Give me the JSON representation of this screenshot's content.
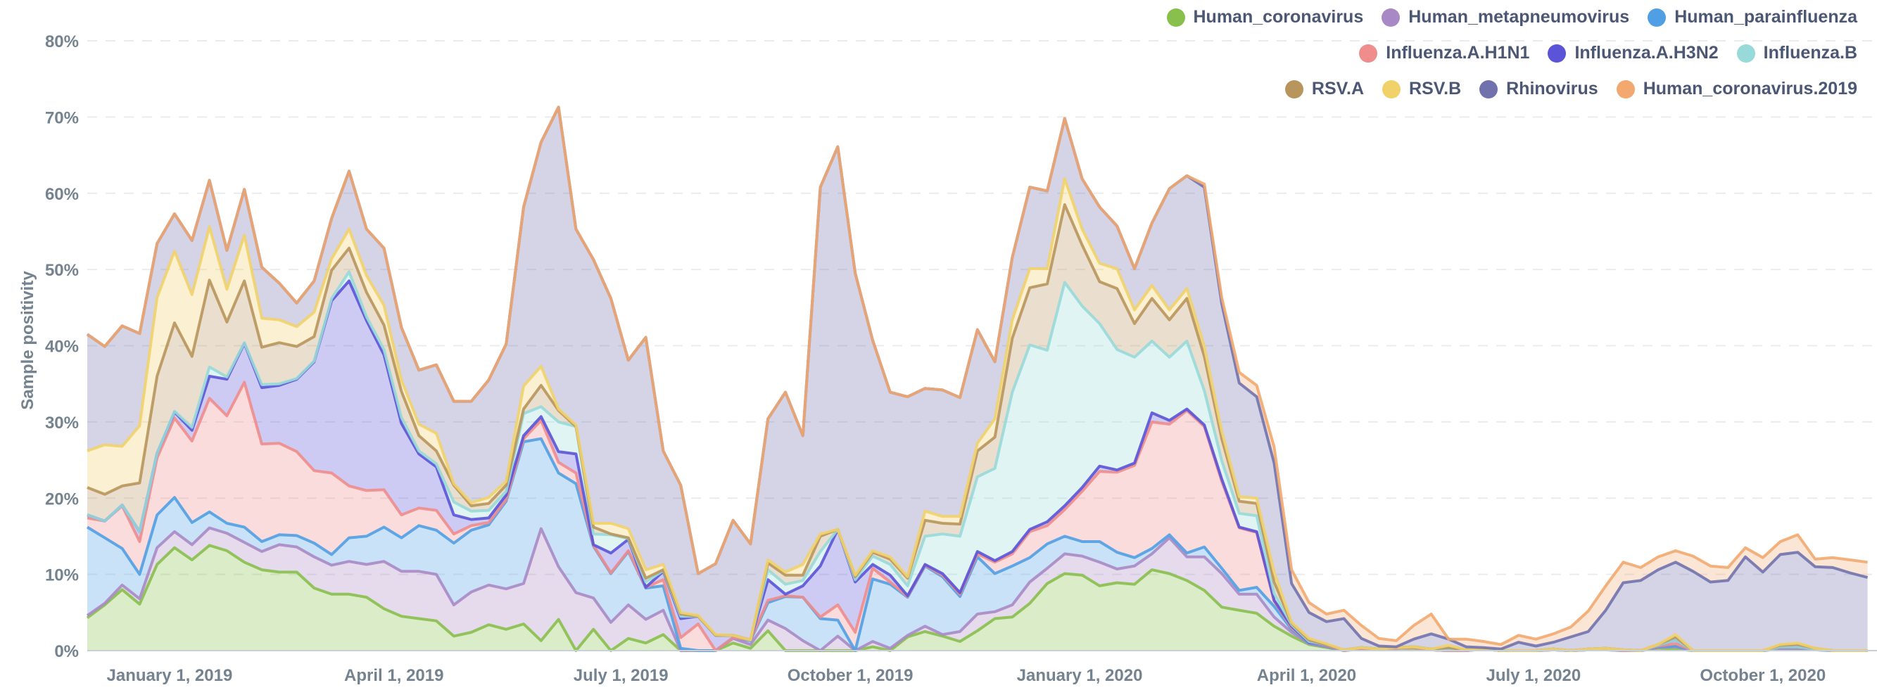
{
  "chart_data": {
    "type": "area",
    "stacked": true,
    "title": "",
    "xlabel": "",
    "ylabel": "Sample positivity",
    "ylim": [
      0,
      80
    ],
    "y_unit": "%",
    "grid": true,
    "legend_position": "top-right",
    "x_start_date": "2018-11-29",
    "x_interval_days": 7,
    "x_ticks": [
      {
        "label": "January 1, 2019",
        "date": "2019-01-01"
      },
      {
        "label": "April 1, 2019",
        "date": "2019-04-01"
      },
      {
        "label": "July 1, 2019",
        "date": "2019-07-01"
      },
      {
        "label": "October 1, 2019",
        "date": "2019-10-01"
      },
      {
        "label": "January 1, 2020",
        "date": "2020-01-01"
      },
      {
        "label": "April 1, 2020",
        "date": "2020-04-01"
      },
      {
        "label": "July 1, 2020",
        "date": "2020-07-01"
      },
      {
        "label": "October 1, 2020",
        "date": "2020-10-01"
      }
    ],
    "y_ticks": [
      {
        "label": "0%",
        "value": 0
      },
      {
        "label": "10%",
        "value": 10
      },
      {
        "label": "20%",
        "value": 20
      },
      {
        "label": "30%",
        "value": 30
      },
      {
        "label": "40%",
        "value": 40
      },
      {
        "label": "50%",
        "value": 50
      },
      {
        "label": "60%",
        "value": 60
      },
      {
        "label": "70%",
        "value": 70
      },
      {
        "label": "80%",
        "value": 80
      }
    ],
    "series": [
      {
        "name": "Human_coronavirus",
        "color": "#88BF4D",
        "values": [
          4.3,
          6.0,
          8.0,
          6.1,
          11.3,
          13.5,
          11.9,
          13.8,
          13.1,
          11.6,
          10.6,
          10.3,
          10.3,
          8.2,
          7.4,
          7.4,
          7.0,
          5.5,
          4.5,
          4.2,
          3.9,
          1.9,
          2.4,
          3.4,
          2.8,
          3.5,
          1.3,
          4.1,
          0,
          2.8,
          0,
          1.6,
          1.0,
          2.1,
          0,
          0,
          0,
          1.0,
          0.3,
          2.6,
          0,
          0,
          0,
          0,
          0,
          0.5,
          0,
          1.8,
          2.5,
          1.9,
          1.2,
          2.6,
          4.2,
          4.4,
          6.2,
          8.8,
          10.1,
          9.9,
          8.5,
          8.9,
          8.7,
          10.6,
          10.1,
          9.2,
          7.9,
          5.7,
          5.3,
          4.9,
          3.2,
          1.9,
          0.8,
          0.4,
          0,
          0.2,
          0.1,
          0.3,
          0.3,
          0.1,
          0,
          0,
          0.2,
          0,
          0,
          0,
          0.1,
          0,
          0.1,
          0.1,
          0,
          0,
          0.3,
          0.2,
          0,
          0,
          0,
          0,
          0,
          0.2,
          0.2,
          0.1,
          0,
          0,
          0
        ]
      },
      {
        "name": "Human_metapneumovirus",
        "color": "#A989C5",
        "values": [
          0.3,
          0.2,
          0.6,
          0.7,
          2.2,
          2.1,
          2.0,
          2.3,
          2.3,
          2.6,
          2.4,
          3.6,
          3.3,
          4.1,
          3.8,
          4.3,
          4.3,
          6.2,
          5.9,
          6.2,
          6.1,
          4.1,
          5.3,
          5.2,
          5.3,
          5.3,
          14.7,
          6.9,
          7.6,
          4.1,
          3.7,
          4.4,
          3.1,
          3.2,
          0,
          0,
          0,
          0.6,
          0.5,
          1.4,
          2.9,
          1.3,
          0,
          1.9,
          0,
          0.7,
          0.3,
          0.2,
          0.7,
          0.2,
          1.3,
          2.2,
          0.9,
          1.6,
          2.8,
          2.0,
          2.6,
          2.5,
          3.1,
          1.8,
          2.4,
          2.1,
          4.7,
          3.1,
          4.4,
          4.4,
          2.1,
          2.5,
          1.2,
          0.5,
          0.1,
          0.1,
          0,
          0.1,
          0,
          0,
          0.1,
          0,
          0,
          0,
          0,
          0,
          0,
          0,
          0,
          0,
          0,
          0,
          0,
          0,
          0.1,
          0.3,
          0,
          0,
          0,
          0,
          0,
          0.1,
          0.1,
          0,
          0,
          0,
          0
        ]
      },
      {
        "name": "Human_parainfluenza",
        "color": "#509EE3",
        "values": [
          11.6,
          8.6,
          4.8,
          3.2,
          4.3,
          4.5,
          2.9,
          2.1,
          1.3,
          2.0,
          1.3,
          1.3,
          1.5,
          1.8,
          1.4,
          3.1,
          3.7,
          4.5,
          4.4,
          6.0,
          5.8,
          8.1,
          8.1,
          7.9,
          11.5,
          18.6,
          11.8,
          12.3,
          14.3,
          6.8,
          6.4,
          7.0,
          4.1,
          3.2,
          0.3,
          0,
          0,
          0.1,
          0.5,
          2.3,
          4.2,
          5.7,
          4.2,
          2.1,
          0,
          8.2,
          8.4,
          5.0,
          7.9,
          7.6,
          4.6,
          7.5,
          5.0,
          5.1,
          3.2,
          3.2,
          2.3,
          1.9,
          2.7,
          2.2,
          1.1,
          0.7,
          0.4,
          0.5,
          1.3,
          0.7,
          0.5,
          0.9,
          1.4,
          0.4,
          0.1,
          0.1,
          0,
          0,
          0,
          0,
          0,
          0,
          0,
          0,
          0,
          0,
          0,
          0,
          0,
          0,
          0,
          0.1,
          0,
          0,
          0.1,
          0.1,
          0,
          0,
          0,
          0,
          0,
          0,
          0,
          0,
          0,
          0,
          0
        ]
      },
      {
        "name": "Influenza.A.H1N1",
        "color": "#EF8C8C",
        "values": [
          1.2,
          2.2,
          5.6,
          4.3,
          7.5,
          10.4,
          10.7,
          14.9,
          14.1,
          19.0,
          12.8,
          12.0,
          11.0,
          9.5,
          10.7,
          6.8,
          6.0,
          4.9,
          3.0,
          2.3,
          2.6,
          1.2,
          0.6,
          0.3,
          0.2,
          0.4,
          2.4,
          1.4,
          1.4,
          0.1,
          0.1,
          0.1,
          0.1,
          0.8,
          1.4,
          3.5,
          0,
          0,
          0.1,
          0.3,
          0.1,
          0,
          0.2,
          2.0,
          2.4,
          1.4,
          0.3,
          0.1,
          0.1,
          0.2,
          0.3,
          0.4,
          1.5,
          1.6,
          3.4,
          2.4,
          3.5,
          6.6,
          9.2,
          10.5,
          12.1,
          16.6,
          14.5,
          18.7,
          15.8,
          11.4,
          8.2,
          7.2,
          0.7,
          0.2,
          0.1,
          0.1,
          0,
          0,
          0,
          0,
          0,
          0,
          0,
          0,
          0,
          0,
          0,
          0,
          0,
          0,
          0,
          0,
          0,
          0,
          0.1,
          0.3,
          0,
          0,
          0,
          0,
          0,
          0.1,
          0.1,
          0.1,
          0,
          0,
          0
        ]
      },
      {
        "name": "Influenza.A.H3N2",
        "color": "#5B53D8",
        "values": [
          0.4,
          0,
          0.1,
          1.3,
          0.6,
          0.8,
          1.4,
          2.9,
          4.8,
          5.1,
          7.4,
          7.6,
          9.5,
          14.3,
          22.6,
          26.9,
          22.3,
          17.7,
          12.0,
          7.1,
          5.7,
          2.5,
          0.8,
          0.6,
          0.6,
          0.4,
          0.5,
          1.4,
          2.5,
          0.1,
          2.6,
          1.5,
          0,
          1.1,
          2.5,
          1.0,
          2.0,
          0.3,
          0,
          2.7,
          0.2,
          1.5,
          6.7,
          9.9,
          6.6,
          0.5,
          0.9,
          0.1,
          0.1,
          0.2,
          0.2,
          0.3,
          0.2,
          0.3,
          0.3,
          0.5,
          0.5,
          0.5,
          0.7,
          0.3,
          0.3,
          1.2,
          0.5,
          0.2,
          0.2,
          0.3,
          0.1,
          0.1,
          0.1,
          0.2,
          0,
          0.1,
          0.1,
          0.1,
          0.1,
          0.1,
          0.1,
          0.1,
          0.1,
          0.1,
          0,
          0,
          0,
          0,
          0.1,
          0,
          0.1,
          0.1,
          0.1,
          0,
          0.1,
          0.5,
          0,
          0,
          0,
          0,
          0,
          0.1,
          0.1,
          0,
          0,
          0,
          0
        ]
      },
      {
        "name": "Influenza.B",
        "color": "#98D9D9",
        "values": [
          0,
          0,
          0,
          0,
          0,
          0.1,
          0.4,
          1.2,
          0.3,
          0.1,
          0.4,
          0.2,
          0.1,
          0.1,
          0.3,
          1.2,
          0.5,
          0.7,
          0.8,
          0.4,
          0.4,
          1.7,
          1.1,
          1.0,
          0.5,
          2.9,
          1.3,
          3.9,
          3.6,
          1.4,
          2.4,
          0.1,
          0.7,
          0.1,
          0.3,
          0,
          0,
          0,
          0,
          1.3,
          1.3,
          0.7,
          1.9,
          0,
          0.3,
          1.1,
          1.4,
          1.3,
          3.7,
          5.2,
          7.4,
          9.8,
          12.1,
          20.9,
          24.2,
          22.5,
          29.3,
          23.8,
          18.7,
          15.8,
          13.9,
          9.4,
          8.3,
          8.9,
          4.5,
          2.4,
          1.8,
          2.1,
          0.9,
          0.2,
          0.1,
          0,
          0,
          0,
          0,
          0,
          0,
          0,
          0.1,
          0,
          0,
          0,
          0,
          0,
          0,
          0,
          0,
          0,
          0,
          0,
          0,
          0,
          0,
          0,
          0,
          0,
          0,
          0,
          0,
          0,
          0,
          0,
          0
        ]
      },
      {
        "name": "RSV.A",
        "color": "#B8955C",
        "values": [
          3.6,
          3.5,
          2.5,
          6.4,
          10.1,
          11.6,
          9.3,
          11.4,
          7.2,
          8.1,
          4.9,
          5.4,
          4.2,
          3.2,
          3.7,
          3.1,
          3.2,
          3.2,
          3.4,
          2.0,
          1.7,
          2.2,
          0.7,
          0.9,
          0.8,
          0.6,
          2.8,
          1.5,
          0,
          0.9,
          0.1,
          0.1,
          0.5,
          0.1,
          0.3,
          0,
          0,
          0,
          0,
          0.9,
          1.2,
          0.7,
          2.0,
          0,
          0.4,
          0.5,
          0.7,
          1.0,
          2.1,
          1.4,
          1.6,
          3.4,
          4.1,
          7.1,
          7.5,
          8.7,
          10.2,
          8.0,
          5.5,
          8.0,
          4.4,
          5.6,
          4.9,
          5.6,
          4.5,
          2.9,
          1.6,
          1.6,
          1.5,
          0.2,
          0.2,
          0,
          0,
          0,
          0,
          0,
          0,
          0,
          0.2,
          0,
          0,
          0,
          0,
          0,
          0,
          0,
          0,
          0,
          0,
          0,
          0.1,
          0.4,
          0,
          0,
          0,
          0,
          0,
          0.2,
          0.3,
          0.1,
          0,
          0,
          0
        ]
      },
      {
        "name": "RSV.B",
        "color": "#F1D26A",
        "values": [
          4.8,
          6.5,
          5.2,
          7.5,
          10.3,
          9.4,
          8.1,
          7.0,
          4.3,
          6.0,
          3.8,
          3.0,
          2.6,
          3.2,
          1.5,
          2.5,
          2.2,
          2.6,
          1.5,
          1.5,
          2.3,
          0.2,
          0.4,
          0.8,
          0.5,
          3.0,
          2.5,
          0.2,
          0.2,
          0.5,
          1.4,
          1.2,
          1.1,
          0.7,
          0.2,
          0.1,
          0.1,
          0,
          0,
          0.4,
          0.4,
          1.4,
          0.3,
          0,
          0.2,
          0.2,
          0.3,
          0.2,
          1.2,
          0.9,
          1.0,
          1.0,
          2.4,
          2.4,
          2.5,
          2.0,
          3.4,
          2.1,
          2.4,
          2.6,
          1.8,
          1.7,
          1.3,
          1.3,
          1.3,
          1.0,
          0.6,
          0.7,
          1.3,
          0.1,
          0.2,
          0.1,
          0,
          0,
          0,
          0,
          0,
          0,
          0.3,
          0,
          0,
          0,
          0,
          0,
          0,
          0,
          0,
          0,
          0,
          0,
          0,
          0.3,
          0,
          0,
          0,
          0,
          0,
          0.1,
          0.2,
          0,
          0,
          0,
          0
        ]
      },
      {
        "name": "Rhinovirus",
        "color": "#7172AD",
        "values": [
          15.3,
          12.9,
          15.8,
          12.1,
          7.1,
          4.9,
          7.1,
          6.1,
          5.1,
          6.0,
          6.7,
          4.8,
          3.1,
          4.1,
          5.3,
          7.6,
          6.1,
          7.5,
          6.9,
          7.1,
          9.0,
          10.8,
          13.3,
          15.4,
          18.0,
          23.5,
          29.4,
          39.6,
          25.7,
          34.6,
          29.5,
          22.1,
          30.5,
          14.9,
          16.7,
          5.5,
          9.3,
          15.1,
          12.6,
          18.5,
          23.6,
          16.9,
          45.5,
          50.2,
          39.6,
          27.6,
          21.6,
          23.6,
          16.1,
          16.6,
          15.6,
          14.9,
          7.5,
          8.2,
          10.7,
          10.2,
          7.9,
          6.6,
          7.4,
          5.6,
          5.4,
          8.2,
          15.9,
          14.8,
          20.9,
          16.7,
          14.9,
          13.3,
          14.3,
          5.1,
          3.4,
          2.9,
          4.1,
          1.2,
          0.4,
          0.1,
          1.0,
          2.0,
          0.8,
          0.4,
          0.2,
          0.2,
          1.1,
          0.6,
          0.9,
          1.8,
          2.3,
          5.0,
          8.8,
          9.2,
          9.8,
          9.5,
          10.4,
          9.0,
          9.2,
          12.3,
          10.3,
          11.8,
          11.9,
          10.7,
          10.9,
          10.2,
          9.6
        ]
      },
      {
        "name": "Human_coronavirus.2019",
        "color": "#F2A86F",
        "values": [
          0,
          0,
          0,
          0,
          0,
          0,
          0,
          0,
          0,
          0,
          0,
          0,
          0,
          0,
          0,
          0,
          0,
          0,
          0,
          0,
          0,
          0,
          0,
          0,
          0,
          0,
          0,
          0,
          0,
          0,
          0,
          0,
          0,
          0,
          0,
          0,
          0,
          0,
          0,
          0,
          0,
          0,
          0,
          0,
          0,
          0,
          0,
          0,
          0,
          0,
          0,
          0,
          0,
          0,
          0,
          0,
          0,
          0,
          0,
          0,
          0,
          0,
          0,
          0,
          0.4,
          0.8,
          1.4,
          1.5,
          2.1,
          1.8,
          1.3,
          1.0,
          1.1,
          1.7,
          1.0,
          0.8,
          1.8,
          2.6,
          0,
          1.0,
          0.8,
          0.6,
          0.9,
          0.9,
          1.1,
          1.3,
          2.7,
          3.2,
          2.7,
          1.7,
          1.7,
          1.5,
          2.0,
          2.1,
          1.7,
          1.2,
          1.9,
          1.7,
          2.3,
          1.0,
          1.3,
          1.7,
          2.0
        ]
      }
    ]
  }
}
